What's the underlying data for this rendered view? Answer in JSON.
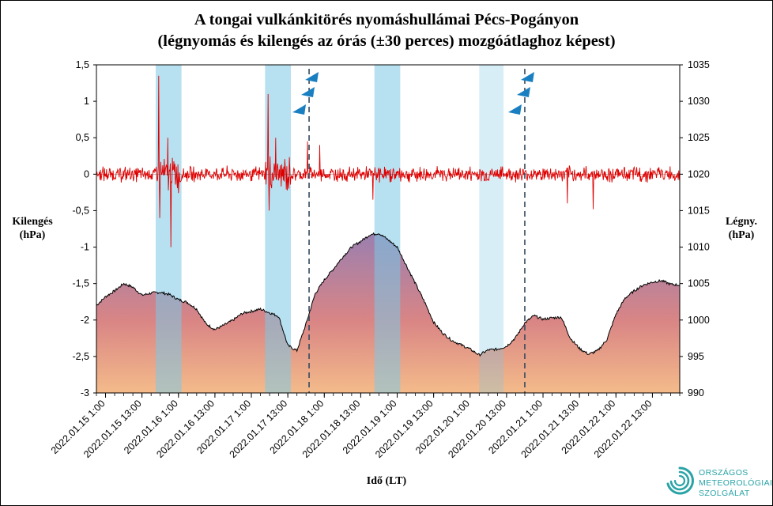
{
  "title_line1": "A tongai vulkánkitörés nyomáshullámai  Pécs-Pogányon",
  "title_line2": "(légnyomás és kilengés az órás (±30 perces) mozgóátlaghoz  képest)",
  "left_axis_label": [
    "Kilengés",
    "(hPa)"
  ],
  "right_axis_label": [
    "Légny.",
    "(hPa)"
  ],
  "x_axis_label": "Idő (LT)",
  "logo_lines": [
    "ORSZÁGOS",
    "METEOROLÓGIAI",
    "SZOLGÁLAT"
  ],
  "colors": {
    "oscillation": "#e00000",
    "pressure_line": "#000000",
    "fill_top": "#9a7fb0",
    "fill_mid": "#d98585",
    "fill_bottom": "#f4bb8a",
    "band": "#7cc8e6",
    "cold_front": "#1a7fc1",
    "dashed": "#34495e",
    "logo": "#2aa3a6"
  },
  "chart_data": {
    "type": "line",
    "x_ticks": [
      "2022.01.15 1:00",
      "2022.01.15 13:00",
      "2022.01.16 1:00",
      "2022.01.16 13:00",
      "2022.01.17 1:00",
      "2022.01.17 13:00",
      "2022.01.18 1:00",
      "2022.01.18 13:00",
      "2022.01.19 1:00",
      "2022.01.19 13:00",
      "2022.01.20 1:00",
      "2022.01.20 13:00",
      "2022.01.21 1:00",
      "2022.01.21 13:00",
      "2022.01.22 1:00",
      "2022.01.22 13:00"
    ],
    "x_range_hours": [
      -3,
      189
    ],
    "y_left": {
      "label": "Kilengés (hPa)",
      "range": [
        -3,
        1.5
      ],
      "ticks": [
        "1,5",
        "1",
        "0,5",
        "0",
        "-0,5",
        "-1",
        "-1,5",
        "-2",
        "-2,5",
        "-3"
      ],
      "values": [
        1.5,
        1,
        0.5,
        0,
        -0.5,
        -1,
        -1.5,
        -2,
        -2.5,
        -3
      ]
    },
    "y_right": {
      "label": "Légny. (hPa)",
      "range": [
        990,
        1035
      ],
      "ticks": [
        "1035",
        "1030",
        "1025",
        "1020",
        "1015",
        "1010",
        "1005",
        "1000",
        "995",
        "990"
      ],
      "values": [
        1035,
        1030,
        1025,
        1020,
        1015,
        1010,
        1005,
        1000,
        995,
        990
      ]
    },
    "series": [
      {
        "name": "Légnyomás",
        "axis": "right",
        "hours": [
          -3,
          0,
          3,
          6,
          9,
          12,
          15,
          18,
          21,
          24,
          27,
          30,
          33,
          36,
          39,
          42,
          45,
          48,
          51,
          54,
          57,
          60,
          63,
          66,
          69,
          72,
          75,
          78,
          81,
          84,
          87,
          90,
          93,
          96,
          99,
          102,
          105,
          108,
          111,
          114,
          117,
          120,
          123,
          126,
          129,
          132,
          135,
          138,
          141,
          144,
          147,
          150,
          153,
          156,
          159,
          162,
          165,
          168,
          171,
          174,
          177,
          180,
          183,
          186,
          189
        ],
        "values": [
          1002,
          1003.2,
          1004,
          1005,
          1004.5,
          1003.4,
          1003.7,
          1003.8,
          1003.5,
          1002.8,
          1002.4,
          1001.5,
          999.5,
          998.7,
          999.3,
          1000,
          1000.9,
          1001.2,
          1001.5,
          1001,
          1000.5,
          996.5,
          995.8,
          999.5,
          1003.6,
          1005.5,
          1007,
          1008.6,
          1010,
          1010.8,
          1011.7,
          1011.9,
          1011,
          1010,
          1007.5,
          1005,
          1002.5,
          999.7,
          998.2,
          997.2,
          996.6,
          996,
          995.2,
          995.9,
          996,
          996.4,
          997.6,
          999.6,
          1000.6,
          1000.1,
          1000.3,
          1000.4,
          997.5,
          996.1,
          995.3,
          995.8,
          997.3,
          1000.8,
          1003,
          1004,
          1004.8,
          1005.2,
          1005.4,
          1004.9,
          1004.8
        ]
      },
      {
        "name": "Kilengés",
        "axis": "left",
        "description_range": [
          -1,
          1.4
        ],
        "spikes": [
          {
            "hour": 17.5,
            "value": 1.35
          },
          {
            "hour": 17.8,
            "value": -0.6
          },
          {
            "hour": 21.5,
            "value": -1
          },
          {
            "hour": 20.5,
            "value": 0.5
          },
          {
            "hour": 53.5,
            "value": 1.1
          },
          {
            "hour": 53.8,
            "value": -0.5
          },
          {
            "hour": 56,
            "value": 0.5
          },
          {
            "hour": 66.5,
            "value": 0.45
          },
          {
            "hour": 70.5,
            "value": 0.4
          },
          {
            "hour": 88,
            "value": -0.35
          },
          {
            "hour": 152,
            "value": -0.4
          },
          {
            "hour": 160.5,
            "value": -0.48
          }
        ]
      }
    ],
    "shaded_bands_hours": [
      [
        16.5,
        25
      ],
      [
        52.5,
        61
      ],
      [
        88.5,
        97
      ],
      [
        123,
        131
      ]
    ],
    "cold_front_lines_hours": [
      67,
      138
    ]
  }
}
